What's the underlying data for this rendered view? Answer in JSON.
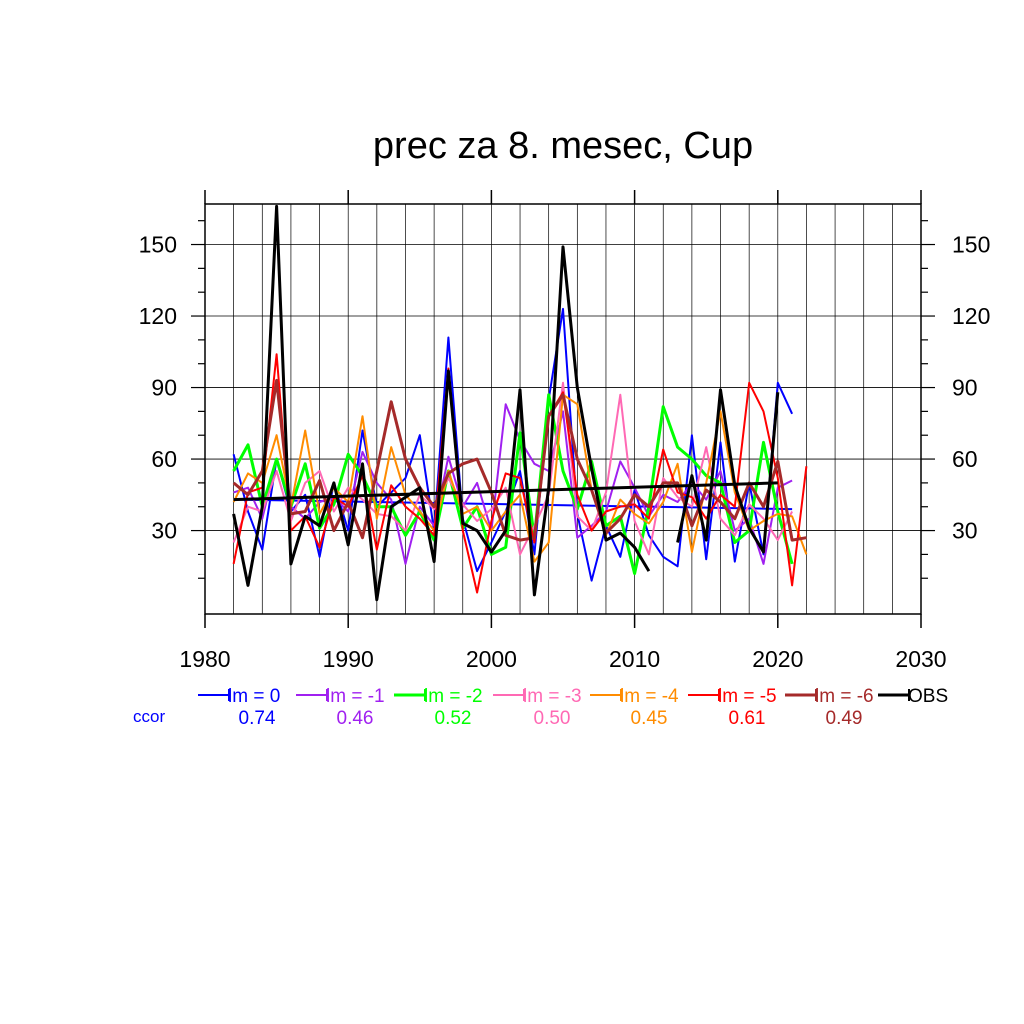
{
  "chart_data": {
    "type": "line",
    "title": "prec za 8. mesec, Cup",
    "xlabel": "",
    "ylabel": "",
    "xlim": [
      1980,
      2030
    ],
    "ylim": [
      -5,
      167
    ],
    "x_ticks": [
      1980,
      1990,
      2000,
      2010,
      2020,
      2030
    ],
    "x_tick_labels": [
      "1980",
      "1990",
      "2000",
      "2010",
      "2020",
      "2030"
    ],
    "y_ticks": [
      30,
      60,
      90,
      120,
      150
    ],
    "y_tick_labels": [
      "30",
      "60",
      "90",
      "120",
      "150"
    ],
    "grid": true,
    "legend_position": "bottom",
    "ccor_label": "ccor",
    "series": [
      {
        "name": "lm = 0",
        "color": "#0000ff",
        "ccor": "0.74",
        "width": 2,
        "x": [
          1982,
          1983,
          1984,
          1985,
          1986,
          1987,
          1988,
          1989,
          1990,
          1991,
          1992,
          1993,
          1994,
          1995,
          1996,
          1997,
          1998,
          1999,
          2000,
          2001,
          2002,
          2003,
          2004,
          2005,
          2006,
          2007,
          2008,
          2009,
          2010,
          2011,
          2012,
          2013,
          2014,
          2015,
          2016,
          2017,
          2018,
          2019,
          2020,
          2021
        ],
        "values": [
          62,
          38,
          22,
          60,
          38,
          45,
          19,
          50,
          30,
          72,
          40,
          46,
          52,
          70,
          30,
          111,
          35,
          13,
          25,
          38,
          55,
          20,
          85,
          123,
          37,
          9,
          32,
          19,
          47,
          28,
          19,
          15,
          70,
          18,
          67,
          17,
          50,
          20,
          92,
          79
        ],
        "trend": [
          43,
          39
        ]
      },
      {
        "name": "lm = -1",
        "color": "#a020f0",
        "ccor": "0.46",
        "width": 2,
        "x": [
          1982,
          1983,
          1984,
          1985,
          1986,
          1987,
          1988,
          1989,
          1990,
          1991,
          1992,
          1993,
          1994,
          1995,
          1996,
          1997,
          1998,
          1999,
          2000,
          2001,
          2002,
          2003,
          2004,
          2005,
          2006,
          2007,
          2008,
          2009,
          2010,
          2011,
          2012,
          2013,
          2014,
          2015,
          2016,
          2017,
          2018,
          2019,
          2020,
          2021
        ],
        "values": [
          46,
          48,
          35,
          60,
          40,
          35,
          42,
          44,
          38,
          63,
          50,
          43,
          16,
          40,
          32,
          61,
          40,
          50,
          30,
          83,
          68,
          58,
          55,
          80,
          27,
          32,
          38,
          59,
          48,
          36,
          45,
          42,
          50,
          43,
          55,
          30,
          35,
          16,
          48,
          51
        ]
      },
      {
        "name": "lm = -2",
        "color": "#00ff00",
        "ccor": "0.52",
        "width": 3,
        "x": [
          1982,
          1983,
          1984,
          1985,
          1986,
          1987,
          1988,
          1989,
          1990,
          1991,
          1992,
          1993,
          1994,
          1995,
          1996,
          1997,
          1998,
          1999,
          2000,
          2001,
          2002,
          2003,
          2004,
          2005,
          2006,
          2007,
          2008,
          2009,
          2010,
          2011,
          2012,
          2013,
          2014,
          2015,
          2016,
          2017,
          2018,
          2019,
          2020,
          2021
        ],
        "values": [
          55,
          66,
          40,
          60,
          40,
          58,
          31,
          41,
          62,
          53,
          40,
          40,
          28,
          38,
          26,
          55,
          31,
          40,
          20,
          23,
          71,
          27,
          87,
          55,
          39,
          59,
          32,
          36,
          12,
          40,
          82,
          65,
          60,
          53,
          50,
          25,
          30,
          67,
          38,
          16
        ]
      },
      {
        "name": "lm = -3",
        "color": "#ff69b4",
        "ccor": "0.50",
        "width": 2,
        "x": [
          1982,
          1983,
          1984,
          1985,
          1986,
          1987,
          1988,
          1989,
          1990,
          1991,
          1992,
          1993,
          1994,
          1995,
          1996,
          1997,
          1998,
          1999,
          2000,
          2001,
          2002,
          2003,
          2004,
          2005,
          2006,
          2007,
          2008,
          2009,
          2010,
          2011,
          2012,
          2013,
          2014,
          2015,
          2016,
          2017,
          2018,
          2019,
          2020,
          2021
        ],
        "values": [
          25,
          40,
          38,
          55,
          34,
          50,
          55,
          38,
          48,
          43,
          37,
          36,
          30,
          45,
          39,
          52,
          41,
          34,
          39,
          48,
          20,
          32,
          45,
          92,
          36,
          30,
          46,
          87,
          34,
          20,
          52,
          44,
          40,
          65,
          35,
          28,
          41,
          35,
          26,
          38
        ]
      },
      {
        "name": "lm = -4",
        "color": "#ff8c00",
        "ccor": "0.45",
        "width": 2,
        "x": [
          1982,
          1983,
          1984,
          1985,
          1986,
          1987,
          1988,
          1989,
          1990,
          1991,
          1992,
          1993,
          1994,
          1995,
          1996,
          1997,
          1998,
          1999,
          2000,
          2001,
          2002,
          2003,
          2004,
          2005,
          2006,
          2007,
          2008,
          2009,
          2010,
          2011,
          2012,
          2013,
          2014,
          2015,
          2016,
          2017,
          2018,
          2019,
          2020,
          2021,
          2022
        ],
        "values": [
          42,
          54,
          50,
          70,
          40,
          72,
          37,
          48,
          42,
          78,
          35,
          65,
          45,
          38,
          30,
          55,
          37,
          40,
          30,
          38,
          45,
          17,
          25,
          87,
          83,
          47,
          28,
          43,
          37,
          33,
          42,
          58,
          21,
          50,
          80,
          46,
          30,
          34,
          37,
          36,
          20
        ]
      },
      {
        "name": "lm = -5",
        "color": "#ff0000",
        "ccor": "0.61",
        "width": 2,
        "x": [
          1982,
          1983,
          1984,
          1985,
          1986,
          1987,
          1988,
          1989,
          1990,
          1991,
          1992,
          1993,
          1994,
          1995,
          1996,
          1997,
          1998,
          1999,
          2000,
          2001,
          2002,
          2003,
          2004,
          2005,
          2006,
          2007,
          2008,
          2009,
          2010,
          2011,
          2012,
          2013,
          2014,
          2015,
          2016,
          2017,
          2018,
          2019,
          2020,
          2021,
          2022
        ],
        "values": [
          16,
          46,
          48,
          104,
          30,
          36,
          23,
          44,
          40,
          53,
          22,
          49,
          40,
          35,
          28,
          98,
          30,
          4,
          34,
          54,
          52,
          25,
          78,
          88,
          45,
          30,
          38,
          40,
          41,
          35,
          64,
          46,
          44,
          35,
          45,
          40,
          92,
          80,
          52,
          7,
          57
        ]
      },
      {
        "name": "lm = -6",
        "color": "#a52a2a",
        "ccor": "0.49",
        "width": 3,
        "x": [
          1982,
          1983,
          1984,
          1985,
          1986,
          1987,
          1988,
          1989,
          1990,
          1991,
          1992,
          1993,
          1994,
          1995,
          1996,
          1997,
          1998,
          1999,
          2000,
          2001,
          2002,
          2003,
          2004,
          2005,
          2006,
          2007,
          2008,
          2009,
          2010,
          2011,
          2012,
          2013,
          2014,
          2015,
          2016,
          2017,
          2018,
          2019,
          2020,
          2021,
          2022
        ],
        "values": [
          50,
          45,
          55,
          93,
          37,
          38,
          51,
          30,
          42,
          27,
          55,
          84,
          60,
          48,
          40,
          54,
          58,
          60,
          46,
          28,
          26,
          27,
          78,
          87,
          60,
          47,
          29,
          35,
          45,
          40,
          50,
          50,
          32,
          47,
          42,
          35,
          50,
          40,
          59,
          26,
          27
        ]
      },
      {
        "name": "OBS",
        "color": "#000000",
        "ccor": "",
        "width": 3,
        "x": [
          1982,
          1983,
          1984,
          1985,
          1986,
          1987,
          1988,
          1989,
          1990,
          1991,
          1992,
          1993,
          1994,
          1995,
          1996,
          1997,
          1998,
          1999,
          2000,
          2001,
          2002,
          2003,
          2004,
          2005,
          2006,
          2007,
          2008,
          2009,
          2010,
          2011,
          2012,
          2013,
          2014,
          2015,
          2016,
          2017,
          2018,
          2019,
          2020
        ],
        "values": [
          37,
          7,
          40,
          166,
          16,
          36,
          32,
          50,
          24,
          58,
          1,
          40,
          44,
          48,
          17,
          97,
          33,
          30,
          21,
          30,
          89,
          3,
          48,
          149,
          90,
          56,
          26,
          29,
          23,
          13,
          null,
          25,
          53,
          26,
          89,
          49,
          31,
          21,
          88
        ],
        "trend": [
          43,
          50
        ]
      }
    ]
  }
}
